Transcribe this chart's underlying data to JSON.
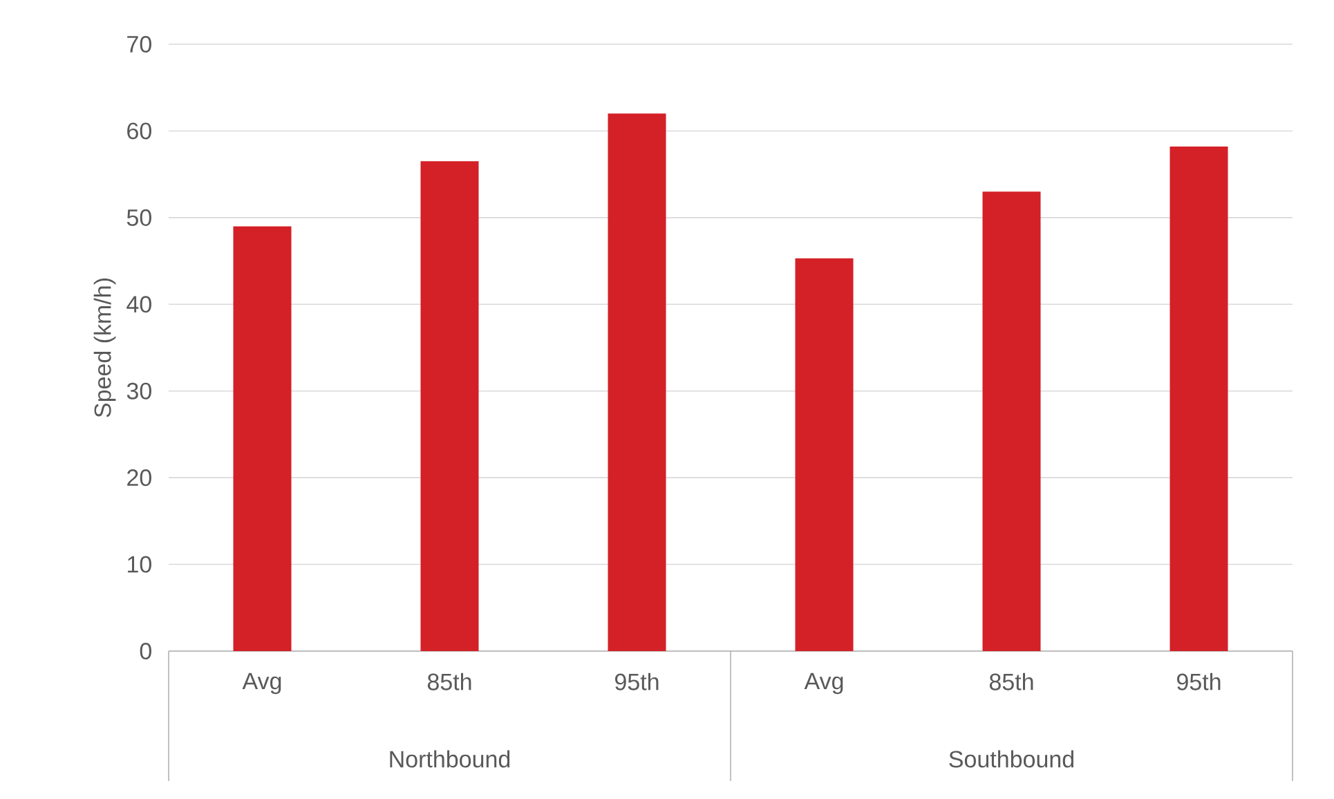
{
  "chart_data": {
    "type": "bar",
    "ylabel": "Speed (km/h)",
    "categories": [
      "Avg",
      "85th",
      "95th",
      "Avg",
      "85th",
      "95th"
    ],
    "values": [
      49.0,
      56.5,
      62.0,
      45.3,
      53.0,
      58.2
    ],
    "color": "#d42027",
    "ylim": [
      0,
      70
    ],
    "yticks": [
      0,
      10,
      20,
      30,
      40,
      50,
      60,
      70
    ],
    "grid": "y",
    "annotations": [
      "Northbound",
      "Southbound"
    ]
  }
}
